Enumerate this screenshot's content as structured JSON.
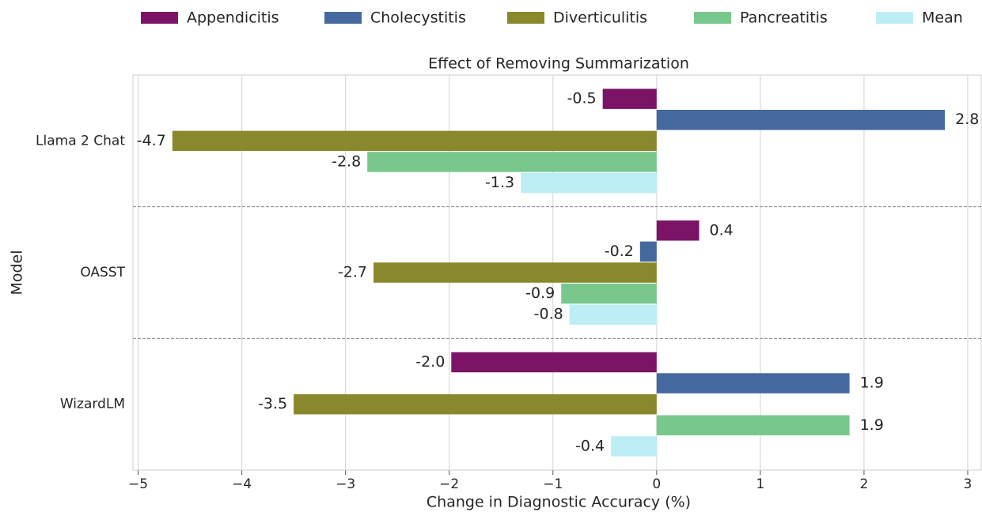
{
  "chart_data": {
    "type": "hbar",
    "title": "Effect of Removing Summarization",
    "x_label": "Change in Diagnostic Accuracy (%)",
    "y_label": "Model",
    "categories": [
      "Llama 2 Chat",
      "OASST",
      "WizardLM"
    ],
    "series": [
      {
        "name": "Appendicitis",
        "color": "#7b1467",
        "values": [
          -0.52,
          0.41,
          -1.98
        ],
        "value_labels": [
          "-0.5",
          "0.4",
          "-2.0"
        ]
      },
      {
        "name": "Cholecystitis",
        "color": "#45699e",
        "values": [
          2.78,
          -0.16,
          1.86
        ],
        "value_labels": [
          "2.8",
          "-0.2",
          "1.9"
        ]
      },
      {
        "name": "Diverticulitis",
        "color": "#8a882c",
        "values": [
          -4.67,
          -2.73,
          -3.5
        ],
        "value_labels": [
          "-4.7",
          "-2.7",
          "-3.5"
        ]
      },
      {
        "name": "Pancreatitis",
        "color": "#78c88e",
        "values": [
          -2.79,
          -0.92,
          1.86
        ],
        "value_labels": [
          "-2.8",
          "-0.9",
          "1.9"
        ]
      },
      {
        "name": "Mean",
        "color": "#bdeef5",
        "values": [
          -1.31,
          -0.84,
          -0.44
        ],
        "value_labels": [
          "-1.3",
          "-0.8",
          "-0.4"
        ]
      }
    ],
    "xlim": [
      -5.05,
      3.13
    ],
    "xticks": [
      {
        "value": -5,
        "label": "−5"
      },
      {
        "value": -4,
        "label": "−4"
      },
      {
        "value": -3,
        "label": "−3"
      },
      {
        "value": -2,
        "label": "−2"
      },
      {
        "value": -1,
        "label": "−1"
      },
      0,
      1,
      2,
      3
    ],
    "grid": true,
    "legend": "top"
  }
}
